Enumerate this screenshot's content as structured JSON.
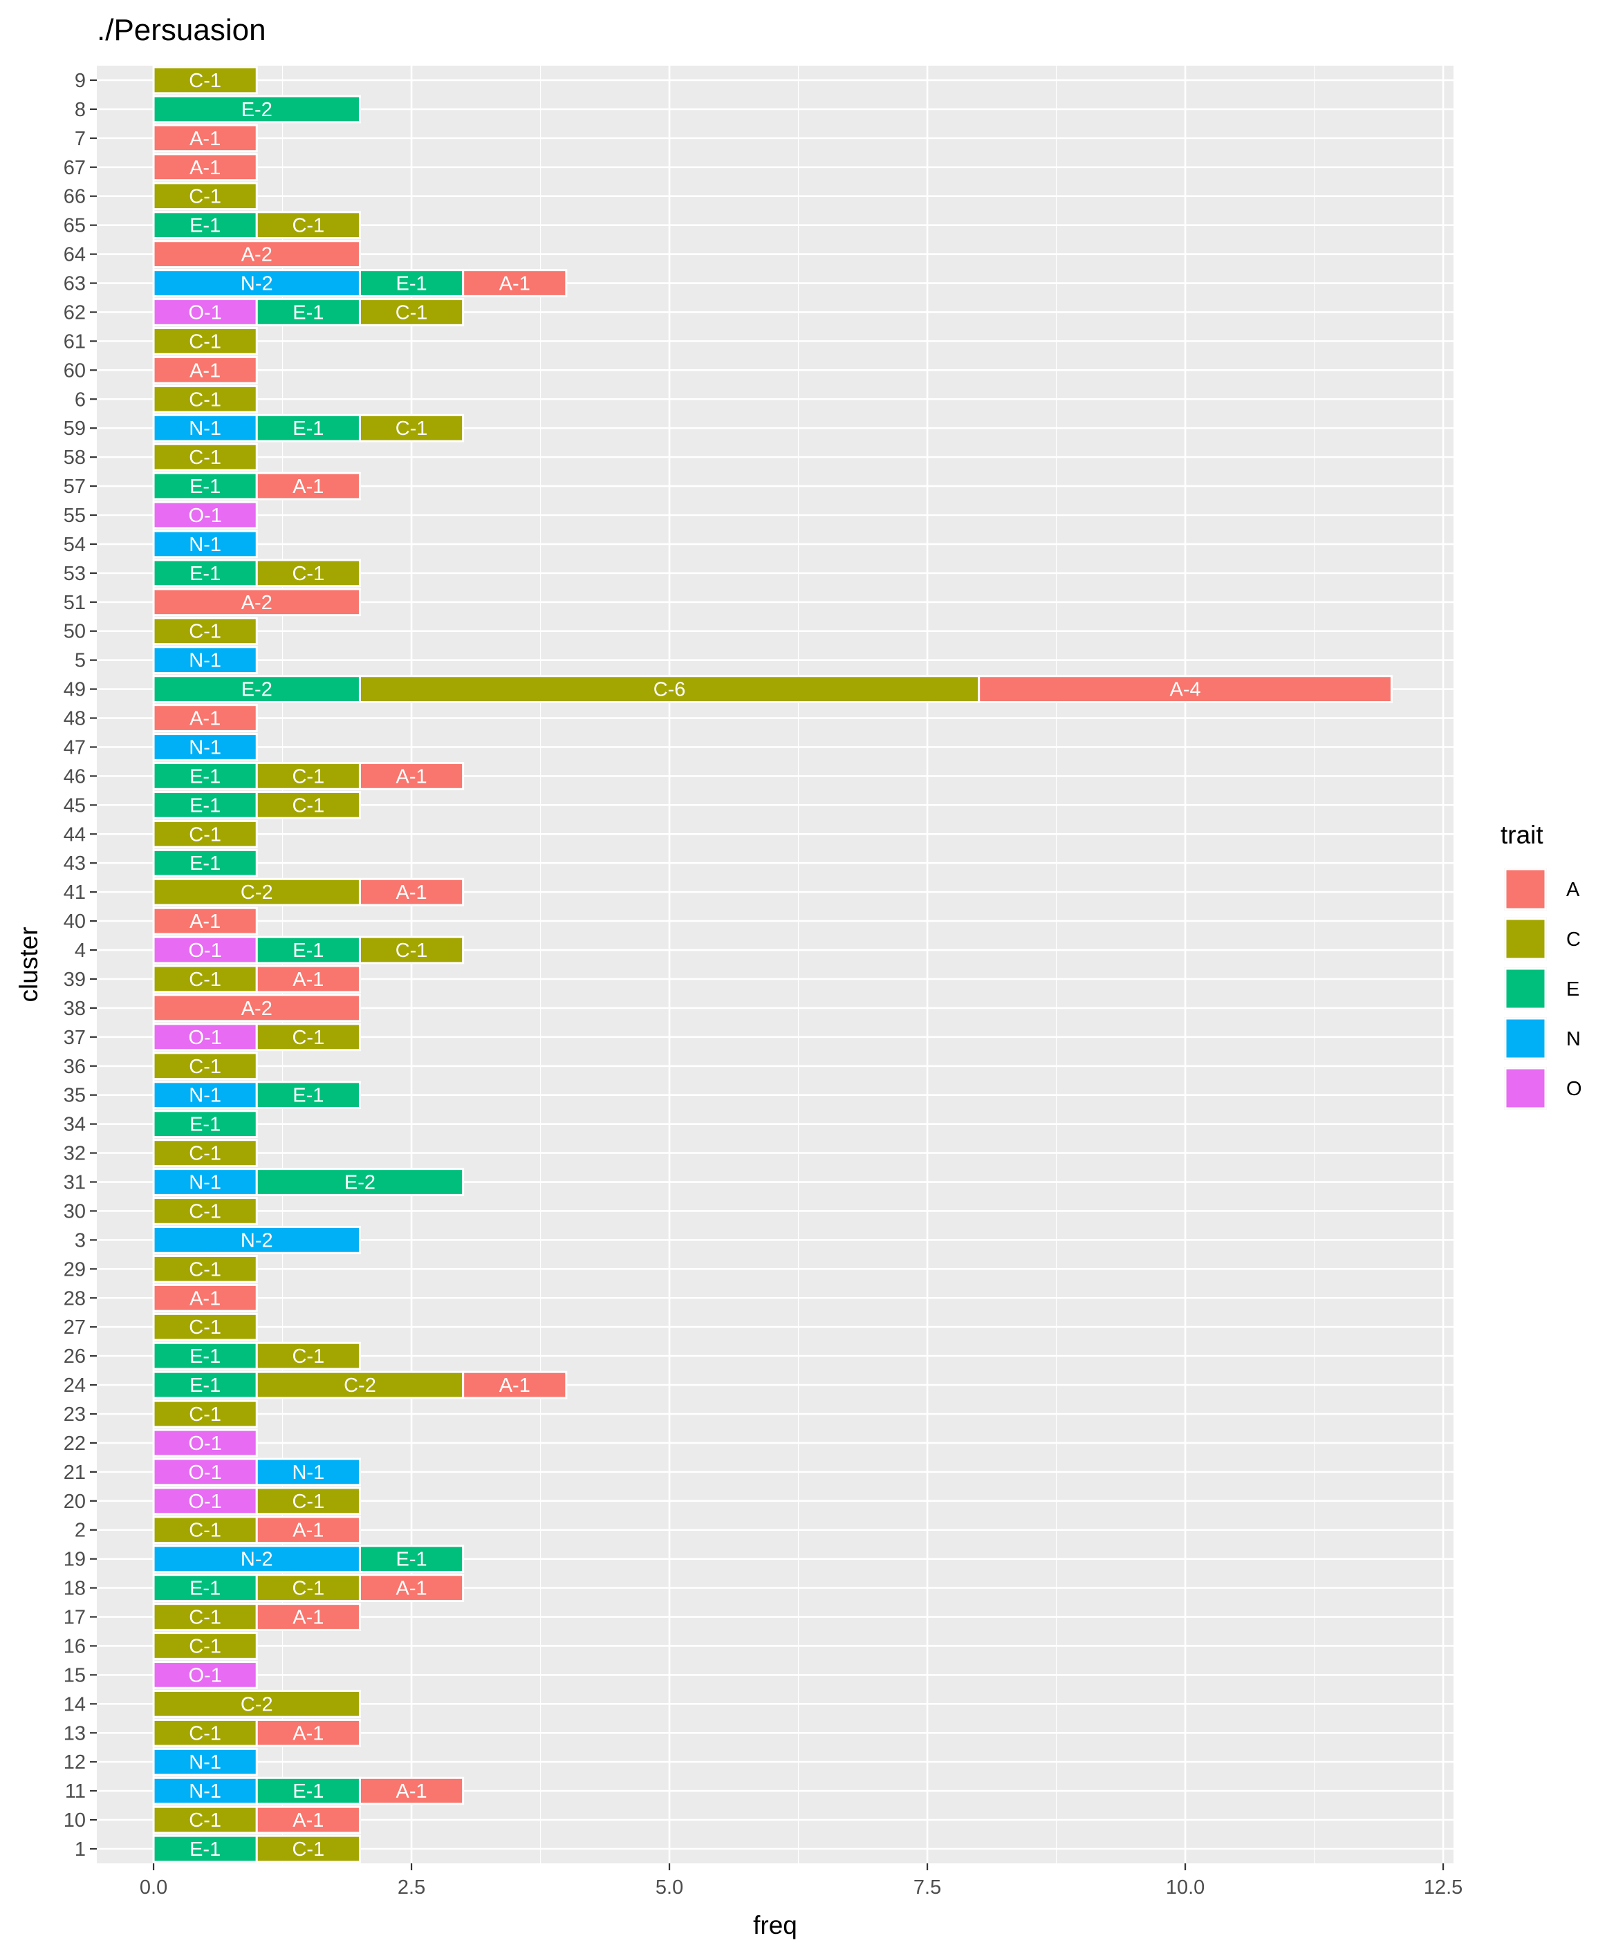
{
  "chart_data": {
    "type": "bar",
    "orientation": "horizontal",
    "stacked": true,
    "title": "./Persuasion",
    "xlabel": "freq",
    "ylabel": "cluster",
    "xlim": [
      -0.55,
      12.6
    ],
    "xticks": [
      0,
      2.5,
      5,
      7.5,
      10,
      12.5
    ],
    "xtick_labels": [
      "0.0",
      "2.5",
      "5.0",
      "7.5",
      "10.0",
      "12.5"
    ],
    "grid": true,
    "legend": {
      "title": "trait",
      "position": "right",
      "entries": [
        {
          "key": "A",
          "color": "#F8766D"
        },
        {
          "key": "C",
          "color": "#A3A500"
        },
        {
          "key": "E",
          "color": "#00BF7D"
        },
        {
          "key": "N",
          "color": "#00B0F6"
        },
        {
          "key": "O",
          "color": "#E76BF3"
        }
      ]
    },
    "categories": [
      "9",
      "8",
      "7",
      "67",
      "66",
      "65",
      "64",
      "63",
      "62",
      "61",
      "60",
      "6",
      "59",
      "58",
      "57",
      "55",
      "54",
      "53",
      "51",
      "50",
      "5",
      "49",
      "48",
      "47",
      "46",
      "45",
      "44",
      "43",
      "41",
      "40",
      "4",
      "39",
      "38",
      "37",
      "36",
      "35",
      "34",
      "32",
      "31",
      "30",
      "3",
      "29",
      "28",
      "27",
      "26",
      "24",
      "23",
      "22",
      "21",
      "20",
      "2",
      "19",
      "18",
      "17",
      "16",
      "15",
      "14",
      "13",
      "12",
      "11",
      "10",
      "1"
    ],
    "stacks": {
      "9": [
        [
          "C",
          1,
          "C-1"
        ]
      ],
      "8": [
        [
          "E",
          2,
          "E-2"
        ]
      ],
      "7": [
        [
          "A",
          1,
          "A-1"
        ]
      ],
      "67": [
        [
          "A",
          1,
          "A-1"
        ]
      ],
      "66": [
        [
          "C",
          1,
          "C-1"
        ]
      ],
      "65": [
        [
          "E",
          1,
          "E-1"
        ],
        [
          "C",
          1,
          "C-1"
        ]
      ],
      "64": [
        [
          "A",
          2,
          "A-2"
        ]
      ],
      "63": [
        [
          "N",
          2,
          "N-2"
        ],
        [
          "E",
          1,
          "E-1"
        ],
        [
          "A",
          1,
          "A-1"
        ]
      ],
      "62": [
        [
          "O",
          1,
          "O-1"
        ],
        [
          "E",
          1,
          "E-1"
        ],
        [
          "C",
          1,
          "C-1"
        ]
      ],
      "61": [
        [
          "C",
          1,
          "C-1"
        ]
      ],
      "60": [
        [
          "A",
          1,
          "A-1"
        ]
      ],
      "6": [
        [
          "C",
          1,
          "C-1"
        ]
      ],
      "59": [
        [
          "N",
          1,
          "N-1"
        ],
        [
          "E",
          1,
          "E-1"
        ],
        [
          "C",
          1,
          "C-1"
        ]
      ],
      "58": [
        [
          "C",
          1,
          "C-1"
        ]
      ],
      "57": [
        [
          "E",
          1,
          "E-1"
        ],
        [
          "A",
          1,
          "A-1"
        ]
      ],
      "55": [
        [
          "O",
          1,
          "O-1"
        ]
      ],
      "54": [
        [
          "N",
          1,
          "N-1"
        ]
      ],
      "53": [
        [
          "E",
          1,
          "E-1"
        ],
        [
          "C",
          1,
          "C-1"
        ]
      ],
      "51": [
        [
          "A",
          2,
          "A-2"
        ]
      ],
      "50": [
        [
          "C",
          1,
          "C-1"
        ]
      ],
      "5": [
        [
          "N",
          1,
          "N-1"
        ]
      ],
      "49": [
        [
          "E",
          2,
          "E-2"
        ],
        [
          "C",
          6,
          "C-6"
        ],
        [
          "A",
          4,
          "A-4"
        ]
      ],
      "48": [
        [
          "A",
          1,
          "A-1"
        ]
      ],
      "47": [
        [
          "N",
          1,
          "N-1"
        ]
      ],
      "46": [
        [
          "E",
          1,
          "E-1"
        ],
        [
          "C",
          1,
          "C-1"
        ],
        [
          "A",
          1,
          "A-1"
        ]
      ],
      "45": [
        [
          "E",
          1,
          "E-1"
        ],
        [
          "C",
          1,
          "C-1"
        ]
      ],
      "44": [
        [
          "C",
          1,
          "C-1"
        ]
      ],
      "43": [
        [
          "E",
          1,
          "E-1"
        ]
      ],
      "41": [
        [
          "C",
          2,
          "C-2"
        ],
        [
          "A",
          1,
          "A-1"
        ]
      ],
      "40": [
        [
          "A",
          1,
          "A-1"
        ]
      ],
      "4": [
        [
          "O",
          1,
          "O-1"
        ],
        [
          "E",
          1,
          "E-1"
        ],
        [
          "C",
          1,
          "C-1"
        ]
      ],
      "39": [
        [
          "C",
          1,
          "C-1"
        ],
        [
          "A",
          1,
          "A-1"
        ]
      ],
      "38": [
        [
          "A",
          2,
          "A-2"
        ]
      ],
      "37": [
        [
          "O",
          1,
          "O-1"
        ],
        [
          "C",
          1,
          "C-1"
        ]
      ],
      "36": [
        [
          "C",
          1,
          "C-1"
        ]
      ],
      "35": [
        [
          "N",
          1,
          "N-1"
        ],
        [
          "E",
          1,
          "E-1"
        ]
      ],
      "34": [
        [
          "E",
          1,
          "E-1"
        ]
      ],
      "32": [
        [
          "C",
          1,
          "C-1"
        ]
      ],
      "31": [
        [
          "N",
          1,
          "N-1"
        ],
        [
          "E",
          2,
          "E-2"
        ]
      ],
      "30": [
        [
          "C",
          1,
          "C-1"
        ]
      ],
      "3": [
        [
          "N",
          2,
          "N-2"
        ]
      ],
      "29": [
        [
          "C",
          1,
          "C-1"
        ]
      ],
      "28": [
        [
          "A",
          1,
          "A-1"
        ]
      ],
      "27": [
        [
          "C",
          1,
          "C-1"
        ]
      ],
      "26": [
        [
          "E",
          1,
          "E-1"
        ],
        [
          "C",
          1,
          "C-1"
        ]
      ],
      "24": [
        [
          "E",
          1,
          "E-1"
        ],
        [
          "C",
          2,
          "C-2"
        ],
        [
          "A",
          1,
          "A-1"
        ]
      ],
      "23": [
        [
          "C",
          1,
          "C-1"
        ]
      ],
      "22": [
        [
          "O",
          1,
          "O-1"
        ]
      ],
      "21": [
        [
          "O",
          1,
          "O-1"
        ],
        [
          "N",
          1,
          "N-1"
        ]
      ],
      "20": [
        [
          "O",
          1,
          "O-1"
        ],
        [
          "C",
          1,
          "C-1"
        ]
      ],
      "2": [
        [
          "C",
          1,
          "C-1"
        ],
        [
          "A",
          1,
          "A-1"
        ]
      ],
      "19": [
        [
          "N",
          2,
          "N-2"
        ],
        [
          "E",
          1,
          "E-1"
        ]
      ],
      "18": [
        [
          "E",
          1,
          "E-1"
        ],
        [
          "C",
          1,
          "C-1"
        ],
        [
          "A",
          1,
          "A-1"
        ]
      ],
      "17": [
        [
          "C",
          1,
          "C-1"
        ],
        [
          "A",
          1,
          "A-1"
        ]
      ],
      "16": [
        [
          "C",
          1,
          "C-1"
        ]
      ],
      "15": [
        [
          "O",
          1,
          "O-1"
        ]
      ],
      "14": [
        [
          "C",
          2,
          "C-2"
        ]
      ],
      "13": [
        [
          "C",
          1,
          "C-1"
        ],
        [
          "A",
          1,
          "A-1"
        ]
      ],
      "12": [
        [
          "N",
          1,
          "N-1"
        ]
      ],
      "11": [
        [
          "N",
          1,
          "N-1"
        ],
        [
          "E",
          1,
          "E-1"
        ],
        [
          "A",
          1,
          "A-1"
        ]
      ],
      "10": [
        [
          "C",
          1,
          "C-1"
        ],
        [
          "A",
          1,
          "A-1"
        ]
      ],
      "1": [
        [
          "E",
          1,
          "E-1"
        ],
        [
          "C",
          1,
          "C-1"
        ]
      ]
    }
  }
}
